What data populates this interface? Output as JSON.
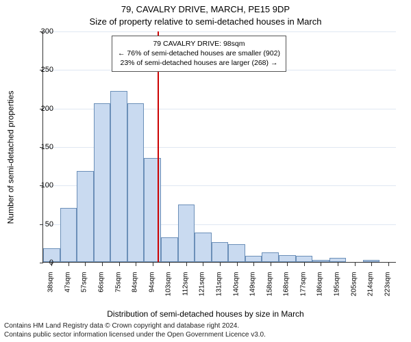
{
  "titles": {
    "line1": "79, CAVALRY DRIVE, MARCH, PE15 9DP",
    "line2": "Size of property relative to semi-detached houses in March"
  },
  "axes": {
    "ylabel": "Number of semi-detached properties",
    "xlabel": "Distribution of semi-detached houses by size in March",
    "ylim": [
      0,
      300
    ],
    "yticks": [
      0,
      50,
      100,
      150,
      200,
      250,
      300
    ],
    "grid_color": "#b0c4de",
    "tick_fontsize": 11,
    "label_fontsize": 12
  },
  "chart": {
    "type": "histogram",
    "categories": [
      "38sqm",
      "47sqm",
      "57sqm",
      "66sqm",
      "75sqm",
      "84sqm",
      "94sqm",
      "103sqm",
      "112sqm",
      "121sqm",
      "131sqm",
      "140sqm",
      "149sqm",
      "158sqm",
      "168sqm",
      "177sqm",
      "186sqm",
      "195sqm",
      "205sqm",
      "214sqm",
      "223sqm"
    ],
    "values": [
      18,
      70,
      118,
      206,
      222,
      206,
      135,
      32,
      75,
      38,
      26,
      23,
      8,
      12,
      9,
      8,
      3,
      5,
      0,
      3,
      0
    ],
    "bar_fill": "#c9daf0",
    "bar_border": "#6b8fb8",
    "bar_width": 1.0,
    "background_color": "#ffffff"
  },
  "reference": {
    "x_index": 6.78,
    "color": "#cc0000",
    "width": 2
  },
  "annotation": {
    "line1": "79 CAVALRY DRIVE: 98sqm",
    "line2": "← 76% of semi-detached houses are smaller (902)",
    "line3": "23% of semi-detached houses are larger (268) →",
    "border_color": "#555555",
    "bg_color": "#ffffff"
  },
  "footer": {
    "line1": "Contains HM Land Registry data © Crown copyright and database right 2024.",
    "line2": "Contains public sector information licensed under the Open Government Licence v3.0."
  }
}
